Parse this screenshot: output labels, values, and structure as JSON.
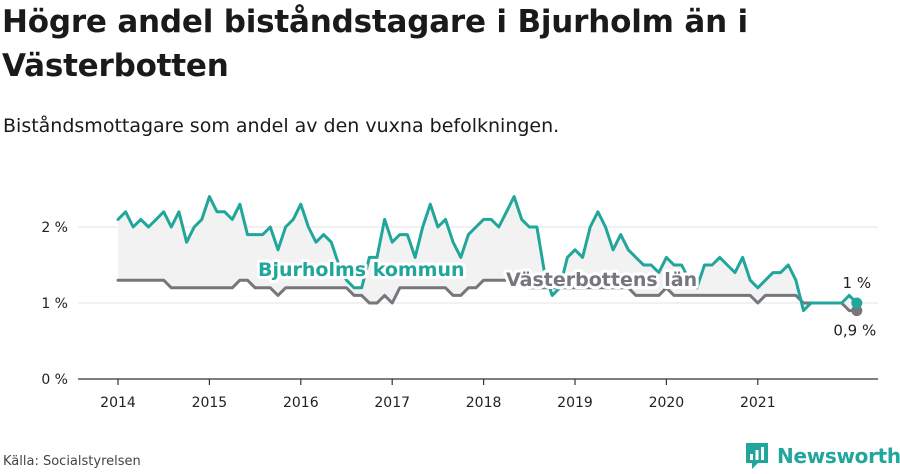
{
  "title": "Högre andel biståndstagare i Bjurholm än i Västerbotten",
  "subtitle": "Biståndsmottagare som andel av den vuxna befolkningen.",
  "source": "Källa: Socialstyrelsen",
  "brand": {
    "name": "Newsworthy",
    "icon": "newsworthy-logo-icon"
  },
  "colors": {
    "bjurholm": "#21a69b",
    "vasterbotten": "#76767c",
    "band": "#f2f2f2",
    "grid": "#e3e3e3",
    "axis": "#333333"
  },
  "chart_data": {
    "type": "line",
    "y_ticks": [
      0,
      1,
      2
    ],
    "y_tick_labels": [
      "0 %",
      "1 %",
      "2 %"
    ],
    "ylim": [
      0,
      2.6
    ],
    "x_ticks": [
      2014,
      2015,
      2016,
      2017,
      2018,
      2019,
      2020,
      2021
    ],
    "x_tick_labels": [
      "2014",
      "2015",
      "2016",
      "2017",
      "2018",
      "2019",
      "2020",
      "2021"
    ],
    "x_start": "2014-01",
    "x_end": "2021-12",
    "series": [
      {
        "name": "Bjurholms kommun",
        "end_label": "1 %",
        "values": [
          2.1,
          2.2,
          2.0,
          2.1,
          2.0,
          2.1,
          2.2,
          2.0,
          2.2,
          1.8,
          2.0,
          2.1,
          2.4,
          2.2,
          2.2,
          2.1,
          2.3,
          1.9,
          1.9,
          1.9,
          2.0,
          1.7,
          2.0,
          2.1,
          2.3,
          2.0,
          1.8,
          1.9,
          1.8,
          1.5,
          1.3,
          1.2,
          1.2,
          1.6,
          1.6,
          2.1,
          1.8,
          1.9,
          1.9,
          1.6,
          2.0,
          2.3,
          2.0,
          2.1,
          1.8,
          1.6,
          1.9,
          2.0,
          2.1,
          2.1,
          2.0,
          2.2,
          2.4,
          2.1,
          2.0,
          2.0,
          1.4,
          1.1,
          1.2,
          1.6,
          1.7,
          1.6,
          2.0,
          2.2,
          2.0,
          1.7,
          1.9,
          1.7,
          1.6,
          1.5,
          1.5,
          1.4,
          1.6,
          1.5,
          1.5,
          1.3,
          1.2,
          1.5,
          1.5,
          1.6,
          1.5,
          1.4,
          1.6,
          1.3,
          1.2,
          1.3,
          1.4,
          1.4,
          1.5,
          1.3,
          0.9,
          1.0,
          1.0,
          1.0,
          1.0,
          1.0,
          1.1,
          1.0
        ]
      },
      {
        "name": "Västerbottens län",
        "end_label": "0,9 %",
        "values": [
          1.3,
          1.3,
          1.3,
          1.3,
          1.3,
          1.3,
          1.3,
          1.2,
          1.2,
          1.2,
          1.2,
          1.2,
          1.2,
          1.2,
          1.2,
          1.2,
          1.3,
          1.3,
          1.2,
          1.2,
          1.2,
          1.1,
          1.2,
          1.2,
          1.2,
          1.2,
          1.2,
          1.2,
          1.2,
          1.2,
          1.2,
          1.1,
          1.1,
          1.0,
          1.0,
          1.1,
          1.0,
          1.2,
          1.2,
          1.2,
          1.2,
          1.2,
          1.2,
          1.2,
          1.1,
          1.1,
          1.2,
          1.2,
          1.3,
          1.3,
          1.3,
          1.3,
          1.3,
          1.3,
          1.2,
          1.2,
          1.2,
          1.2,
          1.2,
          1.2,
          1.2,
          1.2,
          1.2,
          1.2,
          1.2,
          1.2,
          1.2,
          1.2,
          1.1,
          1.1,
          1.1,
          1.1,
          1.2,
          1.1,
          1.1,
          1.1,
          1.1,
          1.1,
          1.1,
          1.1,
          1.1,
          1.1,
          1.1,
          1.1,
          1.0,
          1.1,
          1.1,
          1.1,
          1.1,
          1.1,
          1.0,
          1.0,
          1.0,
          1.0,
          1.0,
          1.0,
          0.9,
          0.9
        ]
      }
    ],
    "grid": true,
    "legend": "inline labels"
  }
}
